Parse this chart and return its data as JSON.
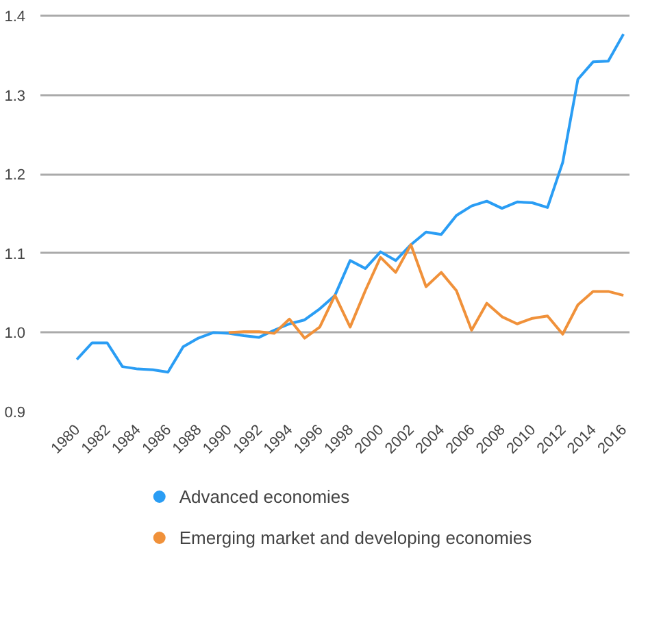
{
  "chart_data": {
    "type": "line",
    "x": [
      1980,
      1981,
      1982,
      1983,
      1984,
      1985,
      1986,
      1987,
      1988,
      1989,
      1990,
      1991,
      1992,
      1993,
      1994,
      1995,
      1996,
      1997,
      1998,
      1999,
      2000,
      2001,
      2002,
      2003,
      2004,
      2005,
      2006,
      2007,
      2008,
      2009,
      2010,
      2011,
      2012,
      2013,
      2014,
      2015,
      2016
    ],
    "series": [
      {
        "name": "Advanced economies",
        "color": "#2a9df4",
        "values": [
          0.966,
          0.987,
          0.987,
          0.957,
          0.954,
          0.953,
          0.95,
          0.982,
          0.993,
          1.0,
          0.999,
          0.996,
          0.994,
          1.003,
          1.011,
          1.016,
          1.03,
          1.047,
          1.091,
          1.081,
          1.102,
          1.091,
          1.111,
          1.127,
          1.124,
          1.148,
          1.16,
          1.166,
          1.157,
          1.165,
          1.164,
          1.158,
          1.215,
          1.32,
          1.342,
          1.343,
          1.377
        ]
      },
      {
        "name": "Emerging market and developing economies",
        "color": "#f0913a",
        "values": [
          null,
          null,
          null,
          null,
          null,
          null,
          null,
          null,
          null,
          null,
          1.0,
          1.001,
          1.001,
          0.999,
          1.017,
          0.993,
          1.007,
          1.047,
          1.007,
          1.053,
          1.095,
          1.076,
          1.111,
          1.058,
          1.076,
          1.053,
          1.003,
          1.037,
          1.02,
          1.011,
          1.018,
          1.021,
          0.998,
          1.035,
          1.052,
          1.052,
          1.047
        ]
      }
    ],
    "xlim": [
      1977.6,
      2016.4
    ],
    "xticks": [
      1980,
      1982,
      1984,
      1986,
      1988,
      1990,
      1992,
      1994,
      1996,
      1998,
      2000,
      2002,
      2004,
      2006,
      2008,
      2010,
      2012,
      2014,
      2016
    ],
    "ylim": [
      0.9,
      1.402
    ],
    "yticks": [
      {
        "value": 0.9,
        "label": "0.9"
      },
      {
        "value": 1.0,
        "label": "1.0"
      },
      {
        "value": 1.1,
        "label": "1.1"
      },
      {
        "value": 1.2,
        "label": "1.2"
      },
      {
        "value": 1.3,
        "label": "1.3"
      },
      {
        "value": 1.4,
        "label": "1.4"
      }
    ],
    "grid": "y",
    "legend": "bottom",
    "line_style": "solid"
  }
}
